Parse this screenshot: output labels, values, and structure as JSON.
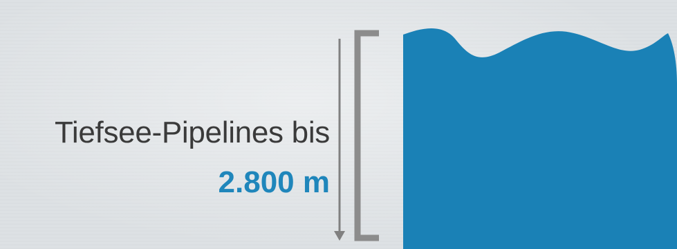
{
  "depth_label": {
    "prefix": "Tiefsee-Pipelines bis",
    "value": "2.800 m"
  },
  "colors": {
    "water": "#1a81b6",
    "bracket": "#8c8c8c",
    "arrow": "#808080",
    "text": "#3a3a3a",
    "accent": "#1f86bb",
    "background": "#dde1e4"
  }
}
